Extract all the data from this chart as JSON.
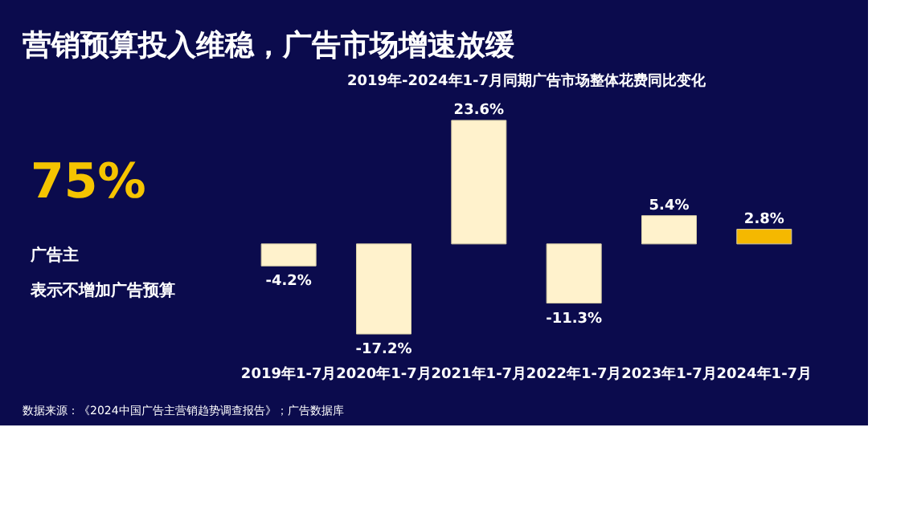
{
  "chart_data": {
    "type": "bar",
    "title": "营销预算投入维稳，广告市场增速放缓",
    "subtitle": "2019年-2024年1-7月同期广告市场整体花费同比变化",
    "categories": [
      "2019年1-7月",
      "2020年1-7月",
      "2021年1-7月",
      "2022年1-7月",
      "2023年1-7月",
      "2024年1-7月"
    ],
    "values": [
      -4.2,
      -17.2,
      23.6,
      -11.3,
      5.4,
      2.8
    ],
    "value_labels": [
      "-4.2%",
      "-17.2%",
      "23.6%",
      "-11.3%",
      "5.4%",
      "2.8%"
    ],
    "colors": [
      "#fff2cc",
      "#fff2cc",
      "#fff2cc",
      "#fff2cc",
      "#fff2cc",
      "#f5b800"
    ],
    "annotations": [
      "75%",
      "广告主",
      "表示不增加广告预算",
      "数据来源：《2024中国广告主营销趋势调查报告》；广告数据库"
    ]
  }
}
